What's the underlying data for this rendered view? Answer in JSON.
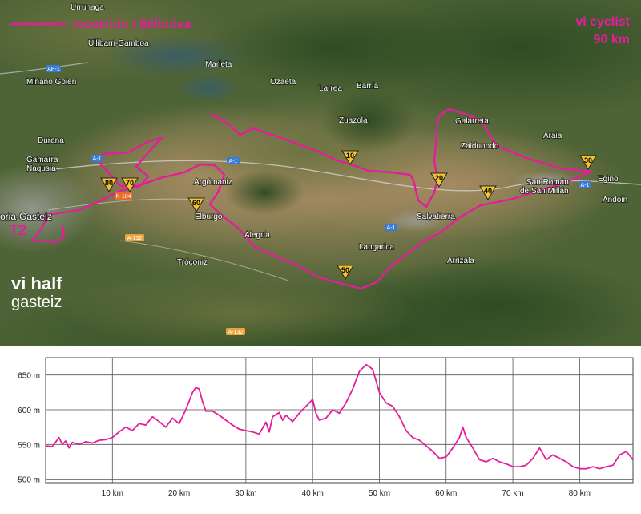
{
  "legend": {
    "route_label": "recorrido / ibilbidea",
    "route_color": "#e41e9a"
  },
  "event": {
    "name_line1": "vi cyclist",
    "name_line2": "90 km"
  },
  "brand": {
    "line1": "vi half",
    "line2": "gasteiz"
  },
  "transition_label": "T2",
  "places": [
    {
      "id": "urrunaga",
      "text": "Urrunaga"
    },
    {
      "id": "ullibarri",
      "text": "Ullibarri-Gamboa"
    },
    {
      "id": "minano",
      "text": "Miñano Goien"
    },
    {
      "id": "marieta",
      "text": "Marieta"
    },
    {
      "id": "ozaeta",
      "text": "Ozaeta"
    },
    {
      "id": "larrea",
      "text": "Larrea"
    },
    {
      "id": "barria",
      "text": "Barría"
    },
    {
      "id": "zuazola",
      "text": "Zuazola"
    },
    {
      "id": "galarreta",
      "text": "Galarreta"
    },
    {
      "id": "araia",
      "text": "Araia"
    },
    {
      "id": "zalduondo",
      "text": "Zalduondo"
    },
    {
      "id": "durana",
      "text": "Durana"
    },
    {
      "id": "gamarra",
      "text": "Gamarra"
    },
    {
      "id": "nagusia",
      "text": "Nagusia"
    },
    {
      "id": "argomaniz",
      "text": "Argómaniz"
    },
    {
      "id": "sanroman1",
      "text": "San Román"
    },
    {
      "id": "sanroman2",
      "text": "de San Millán"
    },
    {
      "id": "egino",
      "text": "Egino"
    },
    {
      "id": "andoin",
      "text": "Andoin"
    },
    {
      "id": "vitoria",
      "text": "oria-Gasteiz"
    },
    {
      "id": "elburgo",
      "text": "Elburgo"
    },
    {
      "id": "salvatierra",
      "text": "Salvatierra"
    },
    {
      "id": "alegria",
      "text": "Alegría"
    },
    {
      "id": "langarica",
      "text": "Langarica"
    },
    {
      "id": "troconiz",
      "text": "Tróconiz"
    },
    {
      "id": "arrizala",
      "text": "Arrizala"
    }
  ],
  "roads": [
    {
      "id": "ap1",
      "text": "AP-1"
    },
    {
      "id": "a1w",
      "text": "A-1"
    },
    {
      "id": "a1c",
      "text": "A-1"
    },
    {
      "id": "a1s",
      "text": "A-1"
    },
    {
      "id": "a1e",
      "text": "A-1"
    },
    {
      "id": "n104",
      "text": "N-104"
    },
    {
      "id": "a132",
      "text": "A-132"
    },
    {
      "id": "a132s",
      "text": "A-132"
    }
  ],
  "km_markers": [
    {
      "id": "km10",
      "text": "10"
    },
    {
      "id": "km20",
      "text": "20"
    },
    {
      "id": "km30",
      "text": "30"
    },
    {
      "id": "km40",
      "text": "40"
    },
    {
      "id": "km50",
      "text": "50"
    },
    {
      "id": "km60",
      "text": "60"
    },
    {
      "id": "km70",
      "text": "70"
    },
    {
      "id": "km80",
      "text": "80"
    }
  ],
  "chart_data": {
    "type": "area",
    "title": "",
    "xlabel": "",
    "ylabel": "",
    "xlim": [
      0,
      88
    ],
    "ylim": [
      495,
      675
    ],
    "grid": true,
    "x_ticks": [
      10,
      20,
      30,
      40,
      50,
      60,
      70,
      80
    ],
    "x_tick_labels": [
      "10 km",
      "20 km",
      "30 km",
      "40 km",
      "50 km",
      "60 km",
      "70 km",
      "80 km"
    ],
    "y_ticks": [
      500,
      550,
      600,
      650
    ],
    "y_tick_labels": [
      "500 m",
      "550 m",
      "600 m",
      "650 m"
    ],
    "series": [
      {
        "color": "#e41e9a",
        "x": [
          0,
          1,
          2,
          2.5,
          3,
          3.5,
          4,
          5,
          6,
          7,
          8,
          9,
          10,
          11,
          12,
          13,
          14,
          15,
          16,
          17,
          18,
          19,
          20,
          21,
          22,
          22.5,
          23,
          23.5,
          24,
          25,
          26,
          27,
          28,
          29,
          30,
          31,
          32,
          33,
          33.5,
          34,
          35,
          35.5,
          36,
          37,
          38,
          39,
          40,
          40.5,
          41,
          42,
          43,
          44,
          45,
          46,
          47,
          48,
          48.5,
          49,
          50,
          51,
          52,
          53,
          54,
          55,
          56,
          57,
          58,
          59,
          60,
          61,
          62,
          62.5,
          63,
          64,
          65,
          66,
          67,
          68,
          69,
          70,
          71,
          72,
          73,
          74,
          75,
          76,
          77,
          78,
          79,
          80,
          81,
          82,
          83,
          84,
          85,
          86,
          87,
          88
        ],
        "y": [
          548,
          547,
          560,
          550,
          555,
          545,
          553,
          550,
          554,
          552,
          556,
          557,
          560,
          568,
          575,
          570,
          580,
          578,
          590,
          583,
          575,
          588,
          580,
          600,
          625,
          632,
          630,
          612,
          598,
          598,
          592,
          585,
          578,
          572,
          570,
          568,
          565,
          582,
          568,
          590,
          596,
          585,
          592,
          583,
          595,
          605,
          615,
          595,
          585,
          588,
          600,
          595,
          610,
          630,
          655,
          665,
          662,
          658,
          625,
          610,
          605,
          590,
          570,
          560,
          556,
          548,
          540,
          530,
          532,
          545,
          560,
          575,
          560,
          545,
          528,
          525,
          530,
          525,
          522,
          518,
          518,
          520,
          530,
          545,
          528,
          535,
          530,
          525,
          518,
          515,
          515,
          518,
          515,
          518,
          520,
          535,
          540,
          528
        ]
      }
    ]
  }
}
